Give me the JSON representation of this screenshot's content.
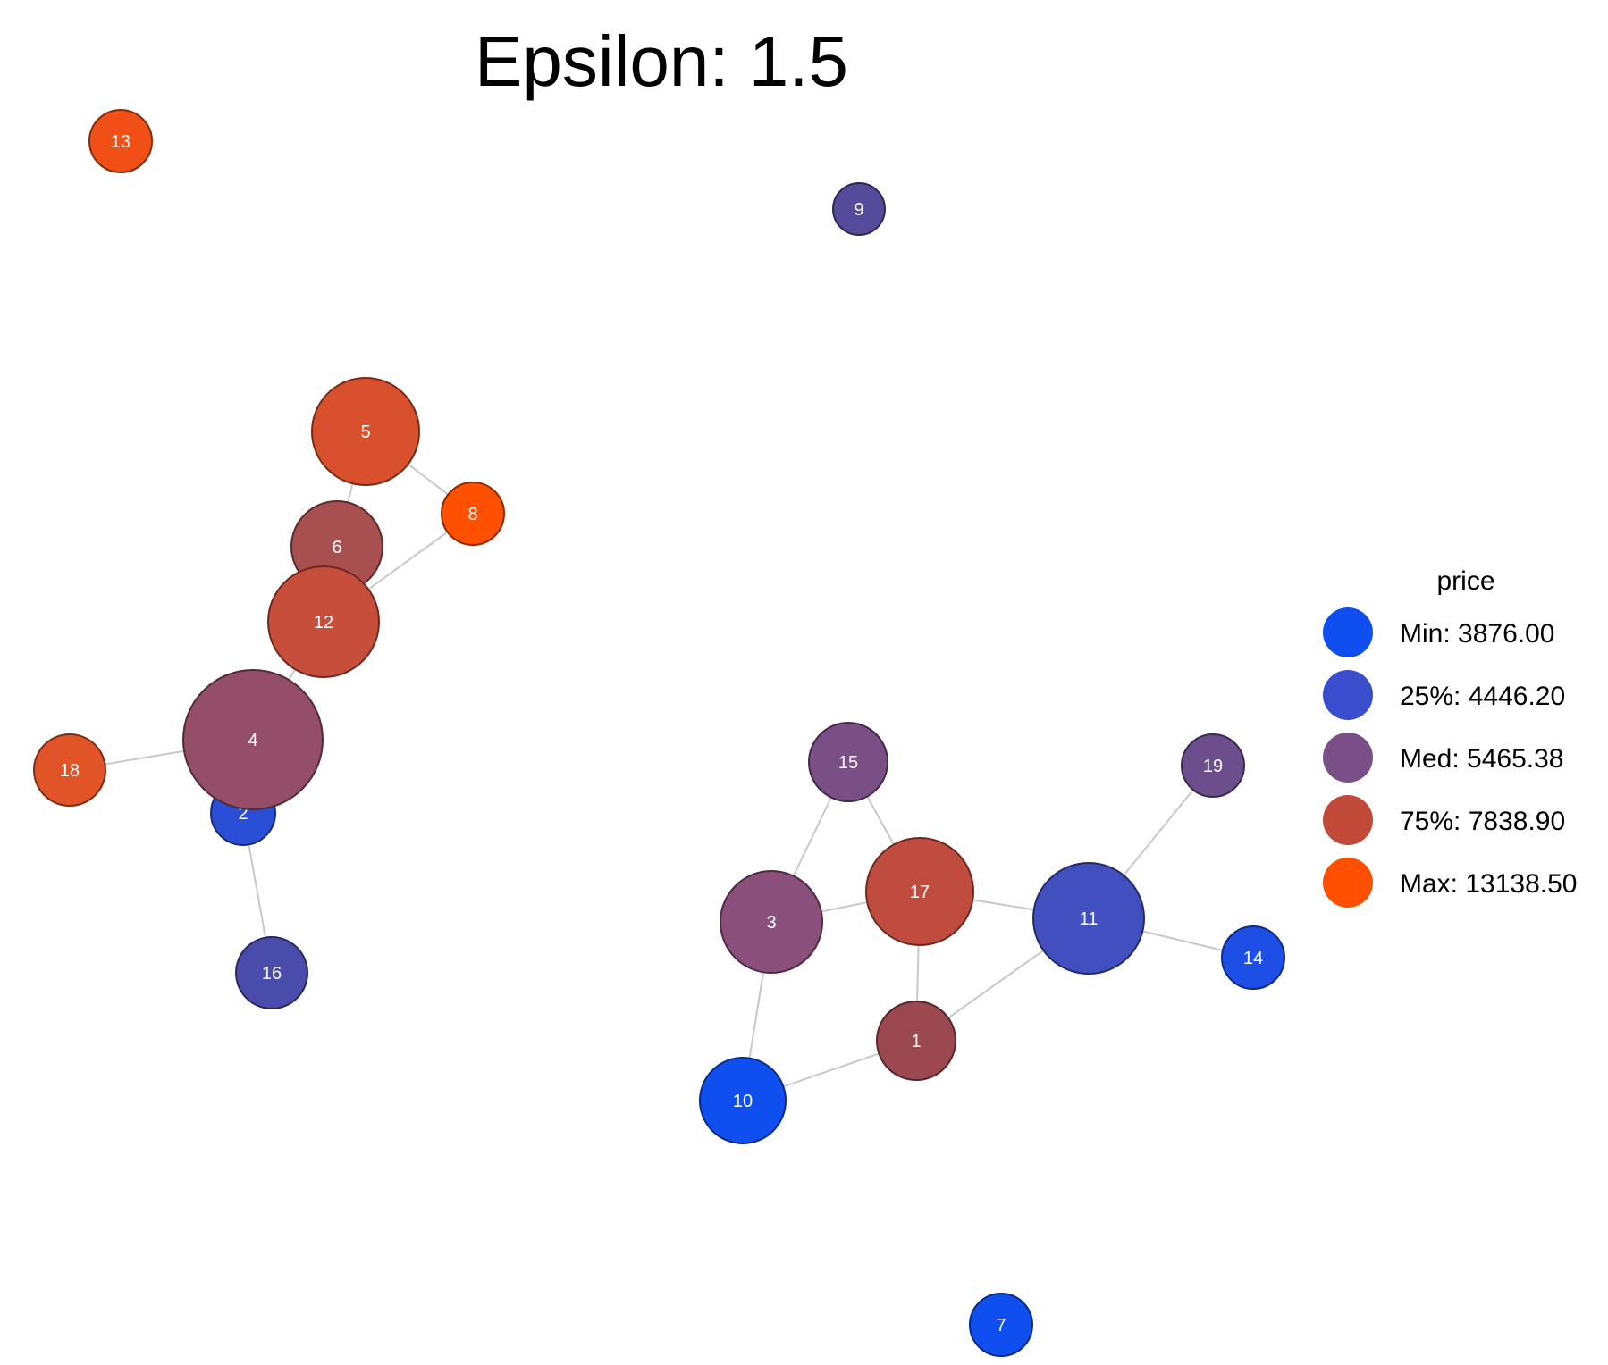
{
  "title": "Epsilon: 1.5",
  "legend": {
    "title": "price",
    "items": [
      {
        "label": "Min: 3876.00",
        "color": "#0f4ff0"
      },
      {
        "label": "25%: 4446.20",
        "color": "#3a4dcc"
      },
      {
        "label": "Med: 5465.38",
        "color": "#7a4f88"
      },
      {
        "label": "75%: 7838.90",
        "color": "#c24a38"
      },
      {
        "label": "Max: 13138.50",
        "color": "#ff4f00"
      }
    ]
  },
  "nodes": [
    {
      "id": "1",
      "color": "#9c4850"
    },
    {
      "id": "2",
      "color": "#2a4ed6"
    },
    {
      "id": "3",
      "color": "#8a4f7a"
    },
    {
      "id": "4",
      "color": "#944e68"
    },
    {
      "id": "5",
      "color": "#d9502c"
    },
    {
      "id": "6",
      "color": "#a85050"
    },
    {
      "id": "7",
      "color": "#0f4ff0"
    },
    {
      "id": "8",
      "color": "#ff5000"
    },
    {
      "id": "9",
      "color": "#564a9a"
    },
    {
      "id": "10",
      "color": "#0f4ff0"
    },
    {
      "id": "11",
      "color": "#424fbf"
    },
    {
      "id": "12",
      "color": "#c84e3c"
    },
    {
      "id": "13",
      "color": "#f05015"
    },
    {
      "id": "14",
      "color": "#1d4ee6"
    },
    {
      "id": "15",
      "color": "#7a4f86"
    },
    {
      "id": "16",
      "color": "#4a4cac"
    },
    {
      "id": "17",
      "color": "#c04c40"
    },
    {
      "id": "18",
      "color": "#e05428"
    },
    {
      "id": "19",
      "color": "#6c4e8c"
    }
  ],
  "edges": [
    [
      "5",
      "8"
    ],
    [
      "5",
      "6"
    ],
    [
      "8",
      "12"
    ],
    [
      "6",
      "12"
    ],
    [
      "12",
      "4"
    ],
    [
      "4",
      "18"
    ],
    [
      "4",
      "2"
    ],
    [
      "2",
      "16"
    ],
    [
      "15",
      "3"
    ],
    [
      "15",
      "17"
    ],
    [
      "3",
      "17"
    ],
    [
      "3",
      "10"
    ],
    [
      "17",
      "11"
    ],
    [
      "17",
      "1"
    ],
    [
      "10",
      "1"
    ],
    [
      "1",
      "11"
    ],
    [
      "11",
      "19"
    ],
    [
      "11",
      "14"
    ]
  ]
}
